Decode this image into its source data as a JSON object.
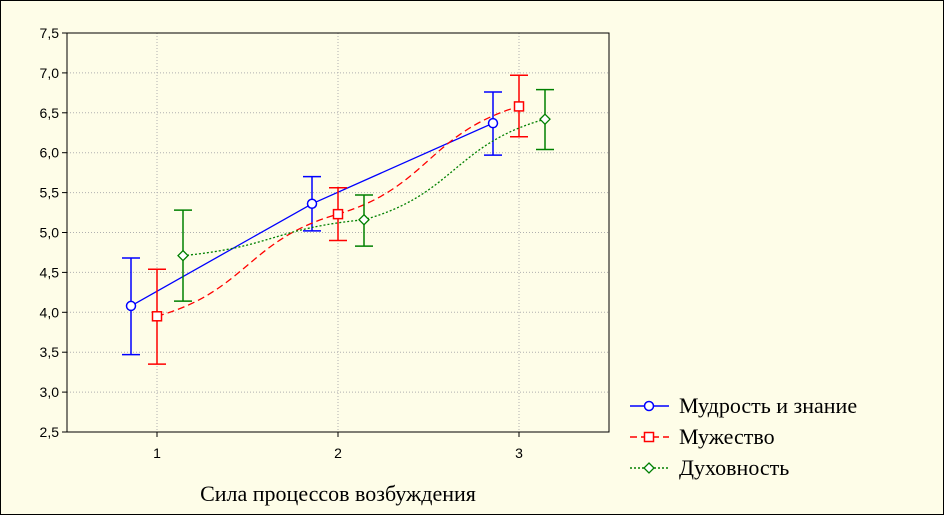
{
  "chart_data": {
    "type": "line",
    "xlabel": "Сила процессов возбуждения",
    "ylabel": "",
    "categories": [
      "1",
      "2",
      "3"
    ],
    "ylim": [
      2.5,
      7.5
    ],
    "yticks": [
      "2,5",
      "3,0",
      "3,5",
      "4,0",
      "4,5",
      "5,0",
      "5,5",
      "6,0",
      "6,5",
      "7,0",
      "7,5"
    ],
    "grid": true,
    "legend_position": "bottom-right",
    "error_bars": true,
    "series": [
      {
        "name": "Мудрость и знание",
        "color": "#0000ff",
        "marker": "circle",
        "line_style": "solid",
        "values": [
          4.08,
          5.36,
          6.37
        ],
        "err_low": [
          3.47,
          5.02,
          5.97
        ],
        "err_high": [
          4.68,
          5.7,
          6.76
        ]
      },
      {
        "name": "Мужество",
        "color": "#ff0000",
        "marker": "square",
        "line_style": "dashed",
        "values": [
          3.95,
          5.23,
          6.58
        ],
        "err_low": [
          3.35,
          4.9,
          6.2
        ],
        "err_high": [
          4.54,
          5.56,
          6.97
        ]
      },
      {
        "name": "Духовность",
        "color": "#008000",
        "marker": "diamond",
        "line_style": "dotted",
        "values": [
          4.71,
          5.16,
          6.42
        ],
        "err_low": [
          4.14,
          4.83,
          6.04
        ],
        "err_high": [
          5.28,
          5.47,
          6.79
        ]
      }
    ]
  }
}
